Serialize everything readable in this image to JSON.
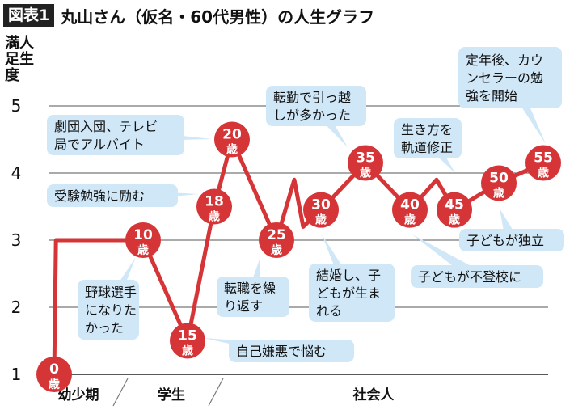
{
  "header": {
    "tag": "図表1",
    "title": "丸山さん（仮名・60代男性）の人生グラフ"
  },
  "colors": {
    "line": "#d63538",
    "bubble": "#cfe7f7",
    "grid": "#333333"
  },
  "chart_data": {
    "type": "line",
    "ylabel": "人生満足度",
    "ylim": [
      1,
      5
    ],
    "yticks": [
      "1",
      "2",
      "3",
      "4",
      "5"
    ],
    "grid": true,
    "phases": [
      "幼少期",
      "学生",
      "社会人"
    ],
    "series": [
      {
        "points": [
          {
            "age": 0,
            "y": 1.0
          },
          {
            "age": 0.2,
            "y": 3.0
          },
          {
            "age": 10,
            "y": 3.0
          },
          {
            "age": 15,
            "y": 1.5
          },
          {
            "age": 18,
            "y": 3.5
          },
          {
            "age": 20,
            "y": 4.5
          },
          {
            "age": 25,
            "y": 3.0
          },
          {
            "age": 27,
            "y": 3.9
          },
          {
            "age": 28,
            "y": 3.2
          },
          {
            "age": 30,
            "y": 3.45
          },
          {
            "age": 35,
            "y": 4.15
          },
          {
            "age": 40,
            "y": 3.45
          },
          {
            "age": 43,
            "y": 3.9
          },
          {
            "age": 45,
            "y": 3.45
          },
          {
            "age": 50,
            "y": 3.85
          },
          {
            "age": 55,
            "y": 4.15
          }
        ]
      }
    ],
    "milestones": [
      {
        "age_label": "0",
        "unit": "歳"
      },
      {
        "age_label": "10",
        "unit": "歳"
      },
      {
        "age_label": "15",
        "unit": "歳"
      },
      {
        "age_label": "18",
        "unit": "歳"
      },
      {
        "age_label": "20",
        "unit": "歳"
      },
      {
        "age_label": "25",
        "unit": "歳"
      },
      {
        "age_label": "30",
        "unit": "歳"
      },
      {
        "age_label": "35",
        "unit": "歳"
      },
      {
        "age_label": "40",
        "unit": "歳"
      },
      {
        "age_label": "45",
        "unit": "歳"
      },
      {
        "age_label": "50",
        "unit": "歳"
      },
      {
        "age_label": "55",
        "unit": "歳"
      }
    ],
    "annotations": [
      {
        "lines": [
          "野球選手",
          "になりた",
          "かった"
        ]
      },
      {
        "lines": [
          "劇団入団、テレビ",
          "局でアルバイト"
        ]
      },
      {
        "lines": [
          "受験勉強に励む"
        ]
      },
      {
        "lines": [
          "自己嫌悪で悩む"
        ]
      },
      {
        "lines": [
          "転職を繰",
          "り返す"
        ]
      },
      {
        "lines": [
          "転勤で引っ越",
          "しが多かった"
        ]
      },
      {
        "lines": [
          "結婚し、子",
          "どもが生ま",
          "れる"
        ]
      },
      {
        "lines": [
          "生き方を",
          "軌道修正"
        ]
      },
      {
        "lines": [
          "子どもが不登校に"
        ]
      },
      {
        "lines": [
          "子どもが独立"
        ]
      },
      {
        "lines": [
          "定年後、カウ",
          "ンセラーの勉",
          "強を開始"
        ]
      }
    ]
  }
}
